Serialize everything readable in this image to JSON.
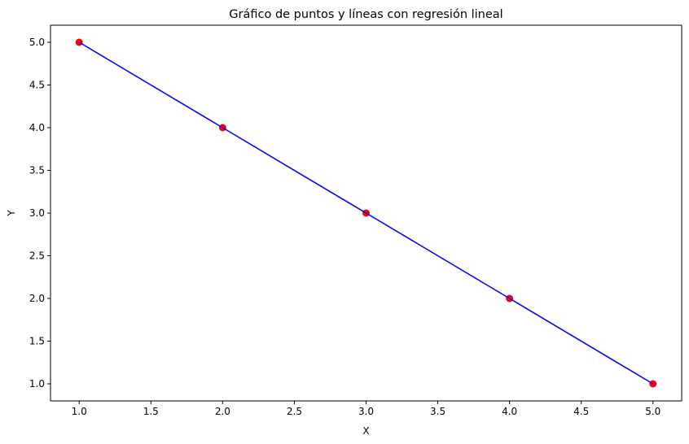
{
  "chart_data": {
    "type": "scatter",
    "title": "Gráfico de puntos y líneas con regresión lineal",
    "xlabel": "X",
    "ylabel": "Y",
    "xlim": [
      0.8,
      5.2
    ],
    "ylim": [
      0.8,
      5.2
    ],
    "xticks": [
      1.0,
      1.5,
      2.0,
      2.5,
      3.0,
      3.5,
      4.0,
      4.5,
      5.0
    ],
    "yticks": [
      1.0,
      1.5,
      2.0,
      2.5,
      3.0,
      3.5,
      4.0,
      4.5,
      5.0
    ],
    "grid": false,
    "series": [
      {
        "kind": "scatter",
        "color": "#ff0000",
        "x": [
          1,
          2,
          3,
          4,
          5
        ],
        "y": [
          5,
          4,
          3,
          2,
          1
        ]
      },
      {
        "kind": "line",
        "color": "#0000ff",
        "x": [
          1,
          2,
          3,
          4,
          5
        ],
        "y": [
          5,
          4,
          3,
          2,
          1
        ]
      }
    ]
  }
}
